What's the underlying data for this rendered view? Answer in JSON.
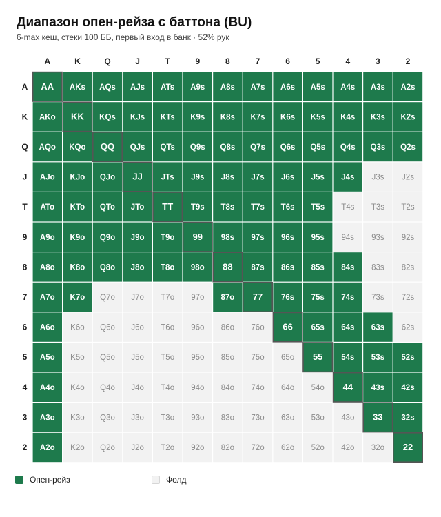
{
  "header": {
    "title": "Диапазон опен-рейза с баттона (BU)",
    "subtitle": "6-max кеш, стеки 100 ББ, первый вход в банк · 52% рук"
  },
  "colors": {
    "raise": "#1e7a4c",
    "fold": "#f2f2f2",
    "raise_text": "#ffffff",
    "fold_text": "#8c8c8c",
    "pair_border": "#555555"
  },
  "legend": [
    {
      "label": "Опен-рейз",
      "key": "raise"
    },
    {
      "label": "Фолд",
      "key": "fold"
    }
  ],
  "chart_data": {
    "type": "heatmap",
    "ranks": [
      "A",
      "K",
      "Q",
      "J",
      "T",
      "9",
      "8",
      "7",
      "6",
      "5",
      "4",
      "3",
      "2"
    ],
    "cells": [
      [
        "AA",
        "AKs",
        "AQs",
        "AJs",
        "ATs",
        "A9s",
        "A8s",
        "A7s",
        "A6s",
        "A5s",
        "A4s",
        "A3s",
        "A2s"
      ],
      [
        "AKo",
        "KK",
        "KQs",
        "KJs",
        "KTs",
        "K9s",
        "K8s",
        "K7s",
        "K6s",
        "K5s",
        "K4s",
        "K3s",
        "K2s"
      ],
      [
        "AQo",
        "KQo",
        "QQ",
        "QJs",
        "QTs",
        "Q9s",
        "Q8s",
        "Q7s",
        "Q6s",
        "Q5s",
        "Q4s",
        "Q3s",
        "Q2s"
      ],
      [
        "AJo",
        "KJo",
        "QJo",
        "JJ",
        "JTs",
        "J9s",
        "J8s",
        "J7s",
        "J6s",
        "J5s",
        "J4s",
        "J3s",
        "J2s"
      ],
      [
        "ATo",
        "KTo",
        "QTo",
        "JTo",
        "TT",
        "T9s",
        "T8s",
        "T7s",
        "T6s",
        "T5s",
        "T4s",
        "T3s",
        "T2s"
      ],
      [
        "A9o",
        "K9o",
        "Q9o",
        "J9o",
        "T9o",
        "99",
        "98s",
        "97s",
        "96s",
        "95s",
        "94s",
        "93s",
        "92s"
      ],
      [
        "A8o",
        "K8o",
        "Q8o",
        "J8o",
        "T8o",
        "98o",
        "88",
        "87s",
        "86s",
        "85s",
        "84s",
        "83s",
        "82s"
      ],
      [
        "A7o",
        "K7o",
        "Q7o",
        "J7o",
        "T7o",
        "97o",
        "87o",
        "77",
        "76s",
        "75s",
        "74s",
        "73s",
        "72s"
      ],
      [
        "A6o",
        "K6o",
        "Q6o",
        "J6o",
        "T6o",
        "96o",
        "86o",
        "76o",
        "66",
        "65s",
        "64s",
        "63s",
        "62s"
      ],
      [
        "A5o",
        "K5o",
        "Q5o",
        "J5o",
        "T5o",
        "95o",
        "85o",
        "75o",
        "65o",
        "55",
        "54s",
        "53s",
        "52s"
      ],
      [
        "A4o",
        "K4o",
        "Q4o",
        "J4o",
        "T4o",
        "94o",
        "84o",
        "74o",
        "64o",
        "54o",
        "44",
        "43s",
        "42s"
      ],
      [
        "A3o",
        "K3o",
        "Q3o",
        "J3o",
        "T3o",
        "93o",
        "83o",
        "73o",
        "63o",
        "53o",
        "43o",
        "33",
        "32s"
      ],
      [
        "A2o",
        "K2o",
        "Q2o",
        "J2o",
        "T2o",
        "92o",
        "82o",
        "72o",
        "62o",
        "52o",
        "42o",
        "32o",
        "22"
      ]
    ],
    "raise": [
      [
        1,
        1,
        1,
        1,
        1,
        1,
        1,
        1,
        1,
        1,
        1,
        1,
        1
      ],
      [
        1,
        1,
        1,
        1,
        1,
        1,
        1,
        1,
        1,
        1,
        1,
        1,
        1
      ],
      [
        1,
        1,
        1,
        1,
        1,
        1,
        1,
        1,
        1,
        1,
        1,
        1,
        1
      ],
      [
        1,
        1,
        1,
        1,
        1,
        1,
        1,
        1,
        1,
        1,
        1,
        0,
        0
      ],
      [
        1,
        1,
        1,
        1,
        1,
        1,
        1,
        1,
        1,
        1,
        0,
        0,
        0
      ],
      [
        1,
        1,
        1,
        1,
        1,
        1,
        1,
        1,
        1,
        1,
        0,
        0,
        0
      ],
      [
        1,
        1,
        1,
        1,
        1,
        1,
        1,
        1,
        1,
        1,
        1,
        0,
        0
      ],
      [
        1,
        1,
        0,
        0,
        0,
        0,
        1,
        1,
        1,
        1,
        1,
        0,
        0
      ],
      [
        1,
        0,
        0,
        0,
        0,
        0,
        0,
        0,
        1,
        1,
        1,
        1,
        0
      ],
      [
        1,
        0,
        0,
        0,
        0,
        0,
        0,
        0,
        0,
        1,
        1,
        1,
        1
      ],
      [
        1,
        0,
        0,
        0,
        0,
        0,
        0,
        0,
        0,
        0,
        1,
        1,
        1
      ],
      [
        1,
        0,
        0,
        0,
        0,
        0,
        0,
        0,
        0,
        0,
        0,
        1,
        1
      ],
      [
        1,
        0,
        0,
        0,
        0,
        0,
        0,
        0,
        0,
        0,
        0,
        0,
        1
      ]
    ]
  }
}
